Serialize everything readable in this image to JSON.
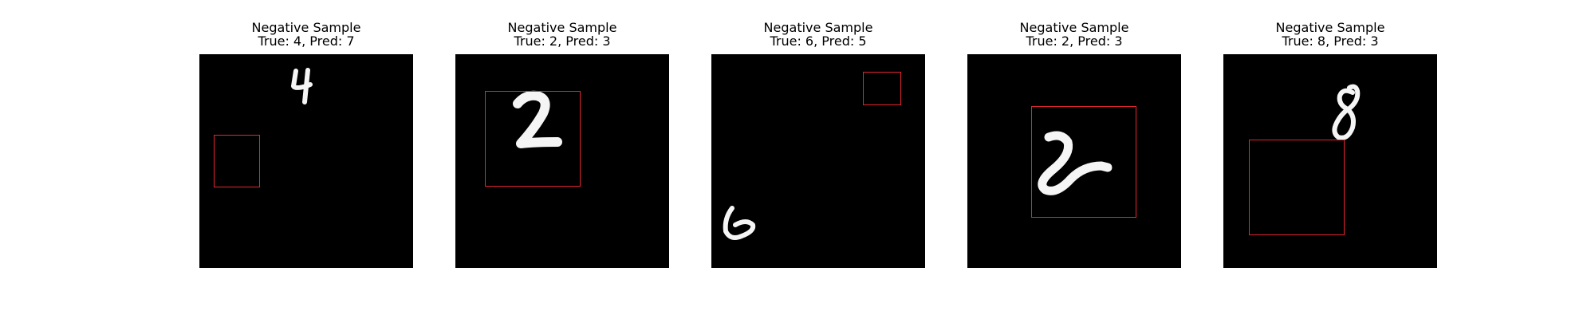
{
  "panels": [
    {
      "title": "Negative Sample",
      "subtitle": "True: 4, Pred: 7",
      "digit": "4"
    },
    {
      "title": "Negative Sample",
      "subtitle": "True: 2, Pred: 3",
      "digit": "2"
    },
    {
      "title": "Negative Sample",
      "subtitle": "True: 6, Pred: 5",
      "digit": "6"
    },
    {
      "title": "Negative Sample",
      "subtitle": "True: 2, Pred: 3",
      "digit": "2"
    },
    {
      "title": "Negative Sample",
      "subtitle": "True: 8, Pred: 3",
      "digit": "8"
    }
  ],
  "colors": {
    "background": "#ffffff",
    "image_background": "#000000",
    "digit_stroke": "#f5f5f5",
    "box_outline": "#e3262e"
  }
}
